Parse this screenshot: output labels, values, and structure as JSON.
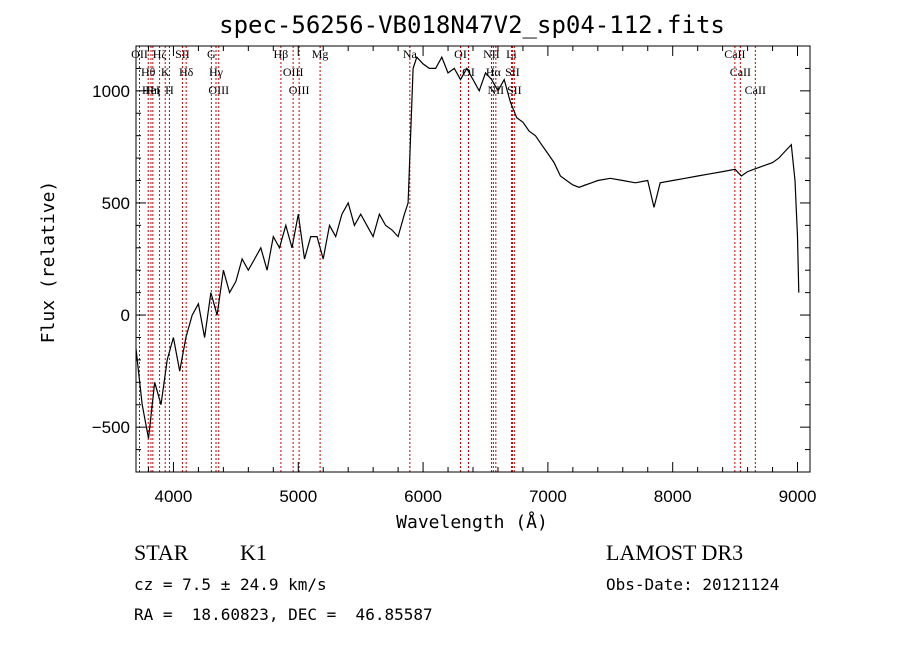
{
  "chart_data": {
    "type": "line",
    "title": "spec-56256-VB018N47V2_sp04-112.fits",
    "xlabel": "Wavelength (Å)",
    "ylabel": "Flux (relative)",
    "xlim": [
      3700,
      9100
    ],
    "ylim": [
      -700,
      1200
    ],
    "x_ticks": [
      4000,
      5000,
      6000,
      7000,
      8000,
      9000
    ],
    "x_tick_labels": [
      "4000",
      "5000",
      "6000",
      "7000",
      "8000",
      "9000"
    ],
    "y_ticks": [
      -500,
      0,
      500,
      1000
    ],
    "y_tick_labels": [
      "−500",
      "0",
      "500",
      "1000"
    ],
    "series": [
      {
        "name": "spectrum",
        "x": [
          3700,
          3750,
          3800,
          3850,
          3900,
          3950,
          4000,
          4050,
          4100,
          4150,
          4200,
          4250,
          4300,
          4350,
          4400,
          4450,
          4500,
          4550,
          4600,
          4650,
          4700,
          4750,
          4800,
          4850,
          4900,
          4950,
          5000,
          5050,
          5100,
          5150,
          5200,
          5250,
          5300,
          5350,
          5400,
          5450,
          5500,
          5550,
          5600,
          5650,
          5700,
          5750,
          5800,
          5850,
          5880,
          5900,
          5920,
          5950,
          6000,
          6050,
          6100,
          6150,
          6200,
          6250,
          6300,
          6350,
          6400,
          6450,
          6500,
          6550,
          6600,
          6650,
          6700,
          6750,
          6800,
          6850,
          6900,
          6950,
          7000,
          7050,
          7100,
          7150,
          7200,
          7250,
          7300,
          7350,
          7400,
          7500,
          7600,
          7700,
          7800,
          7850,
          7900,
          8000,
          8100,
          8200,
          8300,
          8400,
          8500,
          8550,
          8600,
          8650,
          8700,
          8750,
          8800,
          8850,
          8900,
          8950,
          8980,
          9000,
          9010
        ],
        "y": [
          -150,
          -400,
          -550,
          -300,
          -400,
          -200,
          -100,
          -250,
          -100,
          0,
          50,
          -100,
          100,
          0,
          200,
          100,
          150,
          250,
          200,
          250,
          300,
          200,
          350,
          300,
          400,
          300,
          450,
          250,
          350,
          350,
          250,
          400,
          350,
          450,
          500,
          400,
          450,
          400,
          350,
          450,
          400,
          380,
          350,
          450,
          500,
          800,
          1100,
          1150,
          1120,
          1100,
          1100,
          1150,
          1080,
          1100,
          1050,
          1100,
          1050,
          1000,
          1080,
          1050,
          1000,
          1050,
          950,
          880,
          860,
          820,
          800,
          760,
          720,
          680,
          620,
          600,
          580,
          570,
          580,
          590,
          600,
          610,
          600,
          590,
          600,
          480,
          590,
          600,
          610,
          620,
          630,
          640,
          650,
          620,
          640,
          650,
          660,
          670,
          680,
          700,
          730,
          760,
          600,
          350,
          100
        ]
      }
    ],
    "line_markers": [
      {
        "x": 3728,
        "label": "OII"
      },
      {
        "x": 3798,
        "label": "Hθ"
      },
      {
        "x": 3820,
        "label": "HeI"
      },
      {
        "x": 3835,
        "label": "Hη"
      },
      {
        "x": 3889,
        "label": "Hζ"
      },
      {
        "x": 3934,
        "label": "K"
      },
      {
        "x": 3968,
        "label": "H"
      },
      {
        "x": 4072,
        "label": "SII"
      },
      {
        "x": 4102,
        "label": "Hδ"
      },
      {
        "x": 4304,
        "label": "G"
      },
      {
        "x": 4341,
        "label": "Hγ"
      },
      {
        "x": 4363,
        "label": "OIII"
      },
      {
        "x": 4861,
        "label": "Hβ"
      },
      {
        "x": 4959,
        "label": "OIII"
      },
      {
        "x": 5007,
        "label": "OIII"
      },
      {
        "x": 5175,
        "label": "Mg"
      },
      {
        "x": 5894,
        "label": "Na"
      },
      {
        "x": 6300,
        "label": "OI"
      },
      {
        "x": 6364,
        "label": "OI"
      },
      {
        "x": 6548,
        "label": "NII"
      },
      {
        "x": 6563,
        "label": "Hα"
      },
      {
        "x": 6583,
        "label": "NII"
      },
      {
        "x": 6708,
        "label": "Li"
      },
      {
        "x": 6716,
        "label": "SII"
      },
      {
        "x": 6731,
        "label": "SII"
      },
      {
        "x": 8498,
        "label": "CaII"
      },
      {
        "x": 8542,
        "label": "CaII"
      },
      {
        "x": 8662,
        "label": "CaII"
      }
    ]
  },
  "info": {
    "class": "STAR",
    "subclass": "K1",
    "redshift": "cz = 7.5 ± 24.9 km/s",
    "coords": "RA =  18.60823, DEC =  46.85587",
    "survey": "LAMOST DR3",
    "obs_date": "Obs-Date: 20121124"
  },
  "colors": {
    "spectrum": "#000000",
    "marker_line": "#cc0000",
    "axes": "#000000",
    "background": "#ffffff"
  }
}
